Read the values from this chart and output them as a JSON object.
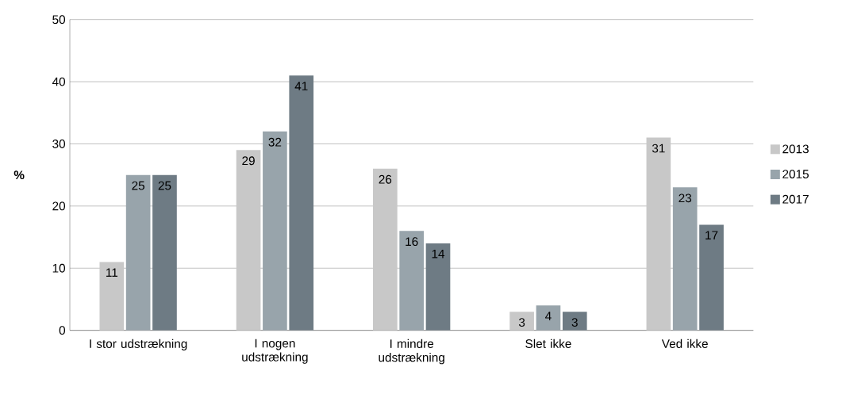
{
  "chart_data": {
    "type": "bar",
    "ylabel": "%",
    "categories": [
      "I stor udstrækning",
      "I nogen udstrækning",
      "I mindre udstrækning",
      "Slet ikke",
      "Ved ikke"
    ],
    "series": [
      {
        "name": "2013",
        "color": "#c8c8c8",
        "values": [
          11,
          29,
          26,
          3,
          31
        ]
      },
      {
        "name": "2015",
        "color": "#98a4ab",
        "values": [
          25,
          32,
          16,
          4,
          23
        ]
      },
      {
        "name": "2017",
        "color": "#6e7b84",
        "values": [
          25,
          41,
          14,
          3,
          17
        ]
      }
    ],
    "ylim": [
      0,
      50
    ],
    "yticks": [
      0,
      10,
      20,
      30,
      40,
      50
    ],
    "grid": "y",
    "legend": "right",
    "data_labels": true
  }
}
